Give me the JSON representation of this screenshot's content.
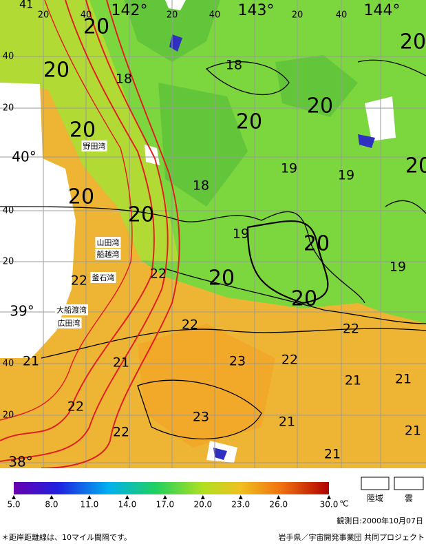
{
  "map": {
    "corner_label": "41",
    "longitudes": [
      "142°",
      "143°",
      "144°"
    ],
    "latitudes": [
      "40°",
      "39°",
      "38°"
    ],
    "top_minutes": [
      "20",
      "40",
      "20",
      "40",
      "20",
      "40"
    ],
    "left_minutes": [
      "40",
      "20",
      "40",
      "20",
      "40",
      "20"
    ],
    "bays": [
      "野田湾",
      "山田湾",
      "船越湾",
      "釜石湾",
      "大船渡湾",
      "広田湾"
    ],
    "contour_labels": [
      20,
      20,
      18,
      18,
      20,
      20,
      20,
      20,
      20,
      19,
      19,
      18,
      20,
      20,
      19,
      20,
      20,
      22,
      22,
      20,
      19,
      22,
      22,
      23,
      22,
      21,
      21,
      21,
      21,
      22,
      23,
      21,
      22,
      21,
      21
    ]
  },
  "colorbar": {
    "lim": [
      5,
      30
    ],
    "ticks": [
      {
        "value": 5,
        "label": "5.0"
      },
      {
        "value": 8,
        "label": "8.0"
      },
      {
        "value": 11,
        "label": "11.0"
      },
      {
        "value": 14,
        "label": "14.0"
      },
      {
        "value": 17,
        "label": "17.0"
      },
      {
        "value": 20,
        "label": "20.0"
      },
      {
        "value": 23,
        "label": "23.0"
      },
      {
        "value": 26,
        "label": "26.0"
      },
      {
        "value": 30,
        "label": "30.0"
      }
    ],
    "unit": "℃"
  },
  "legend": [
    "陸域",
    "雲"
  ],
  "date": "観測日:2000年10月07日",
  "note": "＊距岸距離線は、10マイル間隔です。",
  "credit": "岩手県／宇宙開発事業団 共同プロジェクト"
}
